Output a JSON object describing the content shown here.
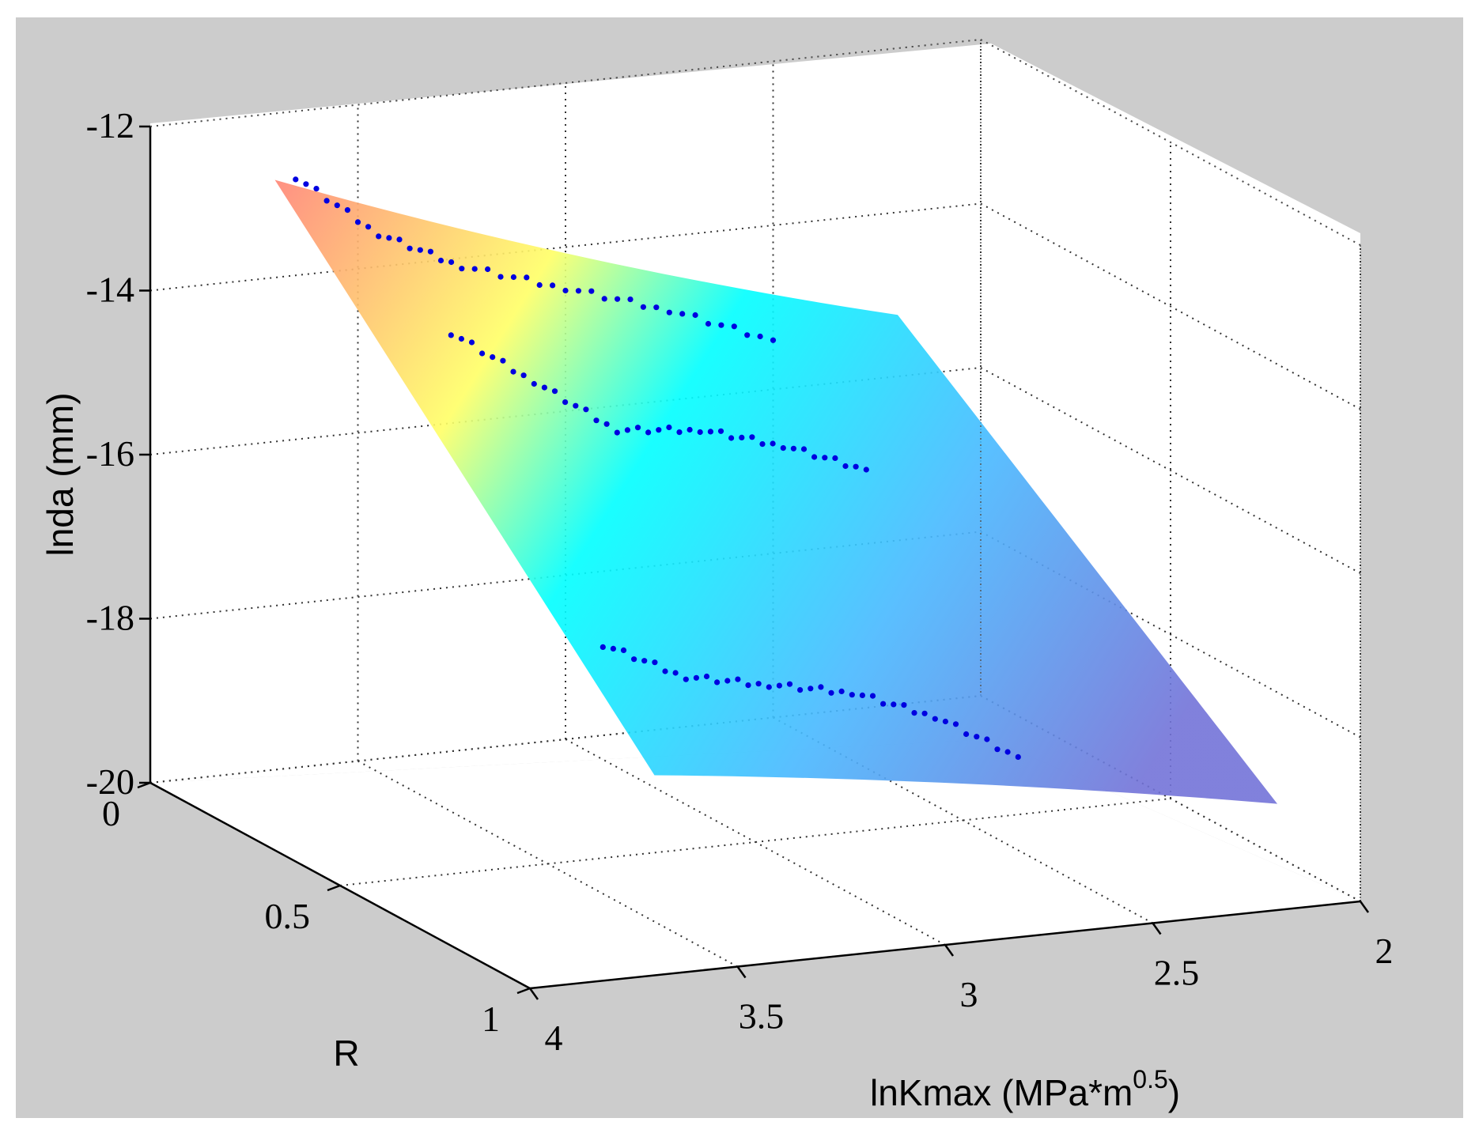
{
  "chart_data": {
    "type": "scatter",
    "title": "",
    "xlabel": "lnKmax (MPa*m",
    "xlabel_sup": "0.5",
    "xlabel_close": ")",
    "ylabel": "R",
    "zlabel": "lnda (mm)",
    "xlim": [
      2,
      4
    ],
    "ylim": [
      0,
      1
    ],
    "zlim": [
      -20,
      -12
    ],
    "xticks": [
      "2",
      "2.5",
      "3",
      "3.5",
      "4"
    ],
    "yticks": [
      "0",
      "0.5",
      "1"
    ],
    "zticks": [
      "-12",
      "-14",
      "-16",
      "-18",
      "-20"
    ],
    "grid": true,
    "background_color": "#cccccc",
    "surface": {
      "description_colors": [
        "#ff7b7b",
        "#ffff66",
        "#00ffff",
        "#4ab8ff",
        "#7777e0"
      ],
      "corners": {
        "x4_r0": -12.2,
        "x2_r0": -15.5,
        "x4_r1": -17.4,
        "x2_r1": -18.9
      }
    },
    "series": [
      {
        "color": "#0000e0",
        "points": [
          {
            "x": 3.65,
            "y": 0.0,
            "z": -12.8
          },
          {
            "x": 3.45,
            "y": 0.0,
            "z": -13.6
          },
          {
            "x": 3.25,
            "y": 0.0,
            "z": -14.1
          },
          {
            "x": 3.0,
            "y": 0.0,
            "z": -14.5
          },
          {
            "x": 2.75,
            "y": 0.0,
            "z": -14.9
          },
          {
            "x": 2.5,
            "y": 0.0,
            "z": -15.4
          }
        ]
      },
      {
        "color": "#0000e0",
        "points": [
          {
            "x": 3.55,
            "y": 0.3,
            "z": -14.0
          },
          {
            "x": 3.35,
            "y": 0.3,
            "z": -14.7
          },
          {
            "x": 3.15,
            "y": 0.3,
            "z": -15.4
          },
          {
            "x": 2.95,
            "y": 0.3,
            "z": -15.5
          },
          {
            "x": 2.75,
            "y": 0.3,
            "z": -15.8
          },
          {
            "x": 2.55,
            "y": 0.3,
            "z": -16.2
          }
        ]
      },
      {
        "color": "#0000e0",
        "points": [
          {
            "x": 3.55,
            "y": 0.7,
            "z": -16.8
          },
          {
            "x": 3.35,
            "y": 0.7,
            "z": -17.3
          },
          {
            "x": 3.15,
            "y": 0.7,
            "z": -17.5
          },
          {
            "x": 2.95,
            "y": 0.7,
            "z": -17.7
          },
          {
            "x": 2.75,
            "y": 0.7,
            "z": -18.1
          },
          {
            "x": 2.55,
            "y": 0.7,
            "z": -18.7
          }
        ]
      }
    ]
  }
}
